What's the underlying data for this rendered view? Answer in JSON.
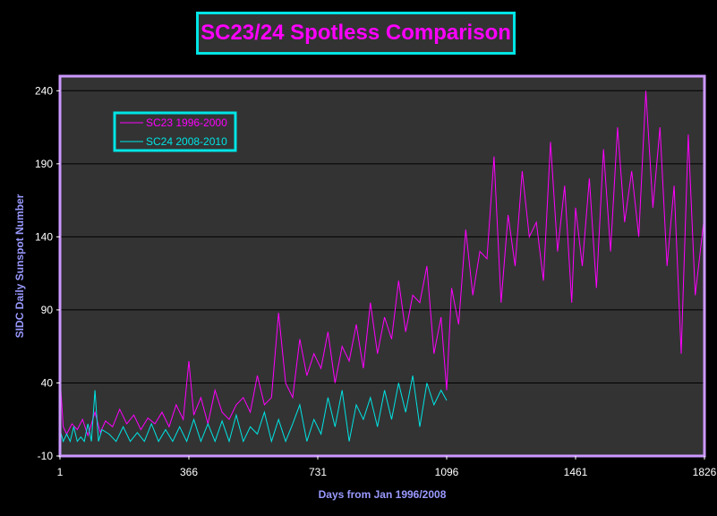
{
  "chart_data": {
    "type": "line",
    "title": "SC23/24 Spotless Comparison",
    "xlabel": "Days from Jan 1996/2008",
    "ylabel": "SIDC Daily Sunspot Number",
    "xlim": [
      1,
      1826
    ],
    "ylim": [
      -10,
      250
    ],
    "xticks": [
      1,
      366,
      731,
      1096,
      1461,
      1826
    ],
    "yticks": [
      -10,
      40,
      90,
      140,
      190,
      240
    ],
    "grid": "horizontal",
    "legend_position": "top-left",
    "series": [
      {
        "name": "SC23 1996-2000",
        "color": "#ff00ff",
        "x": [
          1,
          10,
          20,
          35,
          50,
          65,
          80,
          100,
          115,
          130,
          150,
          170,
          190,
          210,
          230,
          250,
          270,
          290,
          310,
          330,
          350,
          366,
          380,
          400,
          420,
          440,
          460,
          480,
          500,
          520,
          540,
          560,
          580,
          600,
          620,
          640,
          660,
          680,
          700,
          720,
          740,
          760,
          780,
          800,
          820,
          840,
          860,
          880,
          900,
          920,
          940,
          960,
          980,
          1000,
          1020,
          1040,
          1060,
          1080,
          1096,
          1110,
          1130,
          1150,
          1170,
          1190,
          1210,
          1230,
          1250,
          1270,
          1290,
          1310,
          1330,
          1350,
          1370,
          1390,
          1410,
          1430,
          1450,
          1461,
          1480,
          1500,
          1520,
          1540,
          1560,
          1580,
          1600,
          1620,
          1640,
          1660,
          1680,
          1700,
          1720,
          1740,
          1760,
          1780,
          1800,
          1826
        ],
        "y": [
          45,
          10,
          5,
          12,
          8,
          15,
          4,
          20,
          6,
          14,
          10,
          22,
          12,
          18,
          8,
          16,
          12,
          20,
          10,
          25,
          15,
          55,
          18,
          30,
          12,
          35,
          20,
          15,
          25,
          30,
          20,
          45,
          25,
          30,
          88,
          40,
          30,
          70,
          45,
          60,
          50,
          75,
          40,
          65,
          55,
          80,
          50,
          95,
          60,
          85,
          70,
          110,
          75,
          100,
          95,
          120,
          60,
          85,
          35,
          105,
          80,
          145,
          100,
          130,
          125,
          195,
          95,
          155,
          120,
          185,
          140,
          150,
          110,
          205,
          130,
          175,
          95,
          160,
          120,
          180,
          105,
          200,
          130,
          215,
          150,
          185,
          140,
          240,
          160,
          215,
          120,
          175,
          60,
          210,
          100,
          155
        ]
      },
      {
        "name": "SC24 2008-2010",
        "color": "#00e5e5",
        "x": [
          1,
          10,
          20,
          30,
          40,
          50,
          60,
          70,
          80,
          90,
          100,
          110,
          120,
          140,
          160,
          180,
          200,
          220,
          240,
          260,
          280,
          300,
          320,
          340,
          360,
          380,
          400,
          420,
          440,
          460,
          480,
          500,
          520,
          540,
          560,
          580,
          600,
          620,
          640,
          660,
          680,
          700,
          720,
          740,
          760,
          780,
          800,
          820,
          840,
          860,
          880,
          900,
          920,
          940,
          960,
          980,
          1000,
          1020,
          1040,
          1060,
          1080,
          1096
        ],
        "y": [
          8,
          0,
          5,
          0,
          10,
          0,
          3,
          0,
          12,
          0,
          35,
          0,
          8,
          5,
          0,
          10,
          0,
          6,
          0,
          12,
          0,
          8,
          0,
          10,
          0,
          15,
          0,
          12,
          0,
          14,
          0,
          18,
          0,
          10,
          5,
          20,
          0,
          15,
          0,
          12,
          25,
          0,
          15,
          5,
          30,
          10,
          35,
          0,
          25,
          15,
          30,
          10,
          35,
          15,
          40,
          20,
          45,
          10,
          40,
          25,
          35,
          28
        ]
      }
    ]
  },
  "colors": {
    "background": "#000000",
    "plot_area": "#333333",
    "plot_border": "#cc99ff",
    "gridline": "#000000",
    "axis_text": "#9999ff",
    "title_border": "#00e5e5"
  }
}
